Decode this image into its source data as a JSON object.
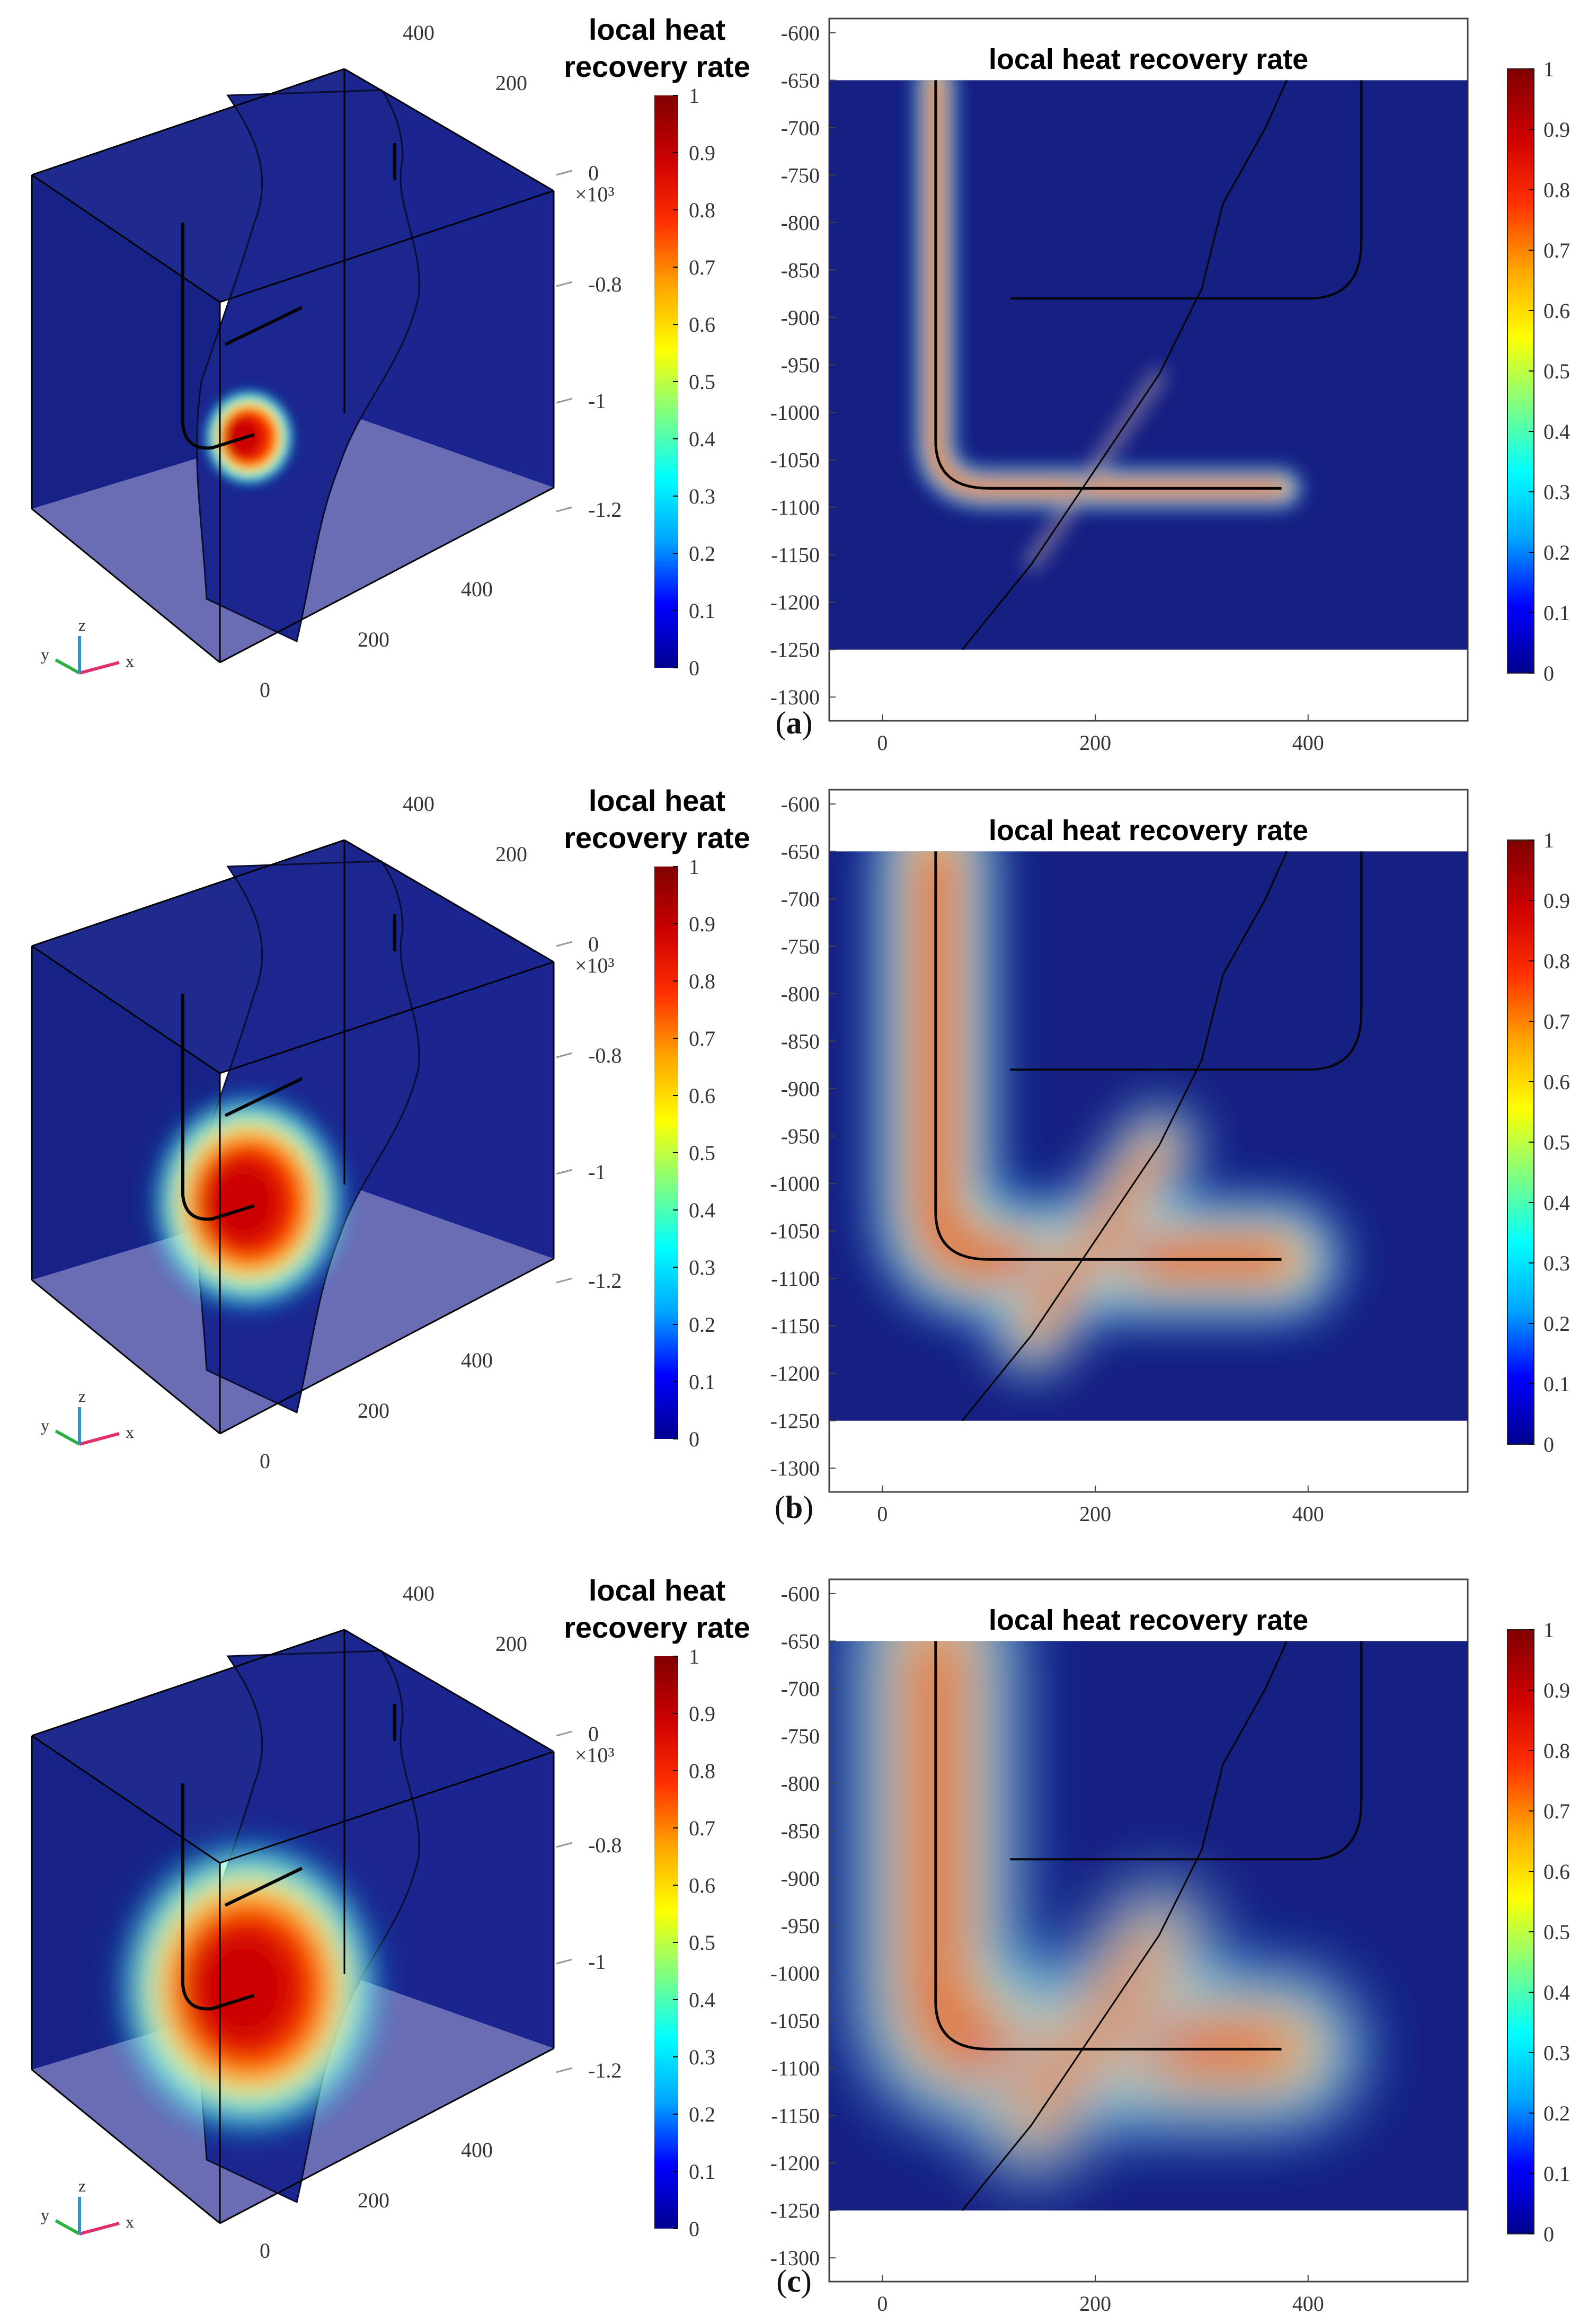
{
  "colormap": {
    "stops": [
      "#00008f",
      "#0000ff",
      "#00a6ff",
      "#00ffff",
      "#80ff80",
      "#ffff00",
      "#ffa600",
      "#ff3000",
      "#cc0000",
      "#800000"
    ],
    "outside": "#161f82",
    "floor": "#6a6cb4"
  },
  "figure": {
    "caption_parts": [
      "(",
      ")"
    ]
  },
  "panels": [
    {
      "label": "a",
      "plot3d": {
        "cbar_title_line1": "local heat",
        "cbar_title_line2": "recovery rate",
        "cbar_ticks": [
          "1",
          "0.9",
          "0.8",
          "0.7",
          "0.6",
          "0.5",
          "0.4",
          "0.3",
          "0.2",
          "0.1",
          "0"
        ],
        "z_ticks": [
          "0",
          "-0.8",
          "-1",
          "-1.2"
        ],
        "z_exp": "×10³",
        "x_ticks": [
          "0",
          "200",
          "400"
        ],
        "y_ticks": [
          "200",
          "400"
        ],
        "triad": [
          "x",
          "y",
          "z"
        ],
        "plume_extent": 0.12
      },
      "plot2d": {
        "title": "local heat recovery rate",
        "y_ticks": [
          "-600",
          "-650",
          "-700",
          "-750",
          "-800",
          "-850",
          "-900",
          "-950",
          "-1000",
          "-1050",
          "-1100",
          "-1150",
          "-1200",
          "-1250",
          "-1300"
        ],
        "x_ticks": [
          "0",
          "200",
          "400"
        ],
        "cbar_ticks": [
          "1",
          "0.9",
          "0.8",
          "0.7",
          "0.6",
          "0.5",
          "0.4",
          "0.3",
          "0.2",
          "0.1",
          "0"
        ],
        "xlim": [
          -50,
          550
        ],
        "ylim": [
          -1325,
          -585
        ],
        "domain_x": [
          -50,
          550
        ],
        "domain_y": [
          -1250,
          -650
        ],
        "plume_width": 14
      }
    },
    {
      "label": "b",
      "plot3d": {
        "cbar_title_line1": "local heat",
        "cbar_title_line2": "recovery rate",
        "cbar_ticks": [
          "1",
          "0.9",
          "0.8",
          "0.7",
          "0.6",
          "0.5",
          "0.4",
          "0.3",
          "0.2",
          "0.1",
          "0"
        ],
        "z_ticks": [
          "0",
          "-0.8",
          "-1",
          "-1.2"
        ],
        "z_exp": "×10³",
        "x_ticks": [
          "0",
          "200",
          "400"
        ],
        "y_ticks": [
          "200",
          "400"
        ],
        "triad": [
          "x",
          "y",
          "z"
        ],
        "plume_extent": 0.42
      },
      "plot2d": {
        "title": "local heat recovery rate",
        "y_ticks": [
          "-600",
          "-650",
          "-700",
          "-750",
          "-800",
          "-850",
          "-900",
          "-950",
          "-1000",
          "-1050",
          "-1100",
          "-1150",
          "-1200",
          "-1250",
          "-1300"
        ],
        "x_ticks": [
          "0",
          "200",
          "400"
        ],
        "cbar_ticks": [
          "1",
          "0.9",
          "0.8",
          "0.7",
          "0.6",
          "0.5",
          "0.4",
          "0.3",
          "0.2",
          "0.1",
          "0"
        ],
        "xlim": [
          -50,
          550
        ],
        "ylim": [
          -1325,
          -585
        ],
        "domain_x": [
          -50,
          550
        ],
        "domain_y": [
          -1250,
          -650
        ],
        "plume_width": 45
      }
    },
    {
      "label": "c",
      "plot3d": {
        "cbar_title_line1": "local heat",
        "cbar_title_line2": "recovery rate",
        "cbar_ticks": [
          "1",
          "0.9",
          "0.8",
          "0.7",
          "0.6",
          "0.5",
          "0.4",
          "0.3",
          "0.2",
          "0.1",
          "0"
        ],
        "z_ticks": [
          "0",
          "-0.8",
          "-1",
          "-1.2"
        ],
        "z_exp": "×10³",
        "x_ticks": [
          "0",
          "200",
          "400"
        ],
        "y_ticks": [
          "200",
          "400"
        ],
        "triad": [
          "x",
          "y",
          "z"
        ],
        "plume_extent": 0.62
      },
      "plot2d": {
        "title": "local heat recovery rate",
        "y_ticks": [
          "-600",
          "-650",
          "-700",
          "-750",
          "-800",
          "-850",
          "-900",
          "-950",
          "-1000",
          "-1050",
          "-1100",
          "-1150",
          "-1200",
          "-1250",
          "-1300"
        ],
        "x_ticks": [
          "0",
          "200",
          "400"
        ],
        "cbar_ticks": [
          "1",
          "0.9",
          "0.8",
          "0.7",
          "0.6",
          "0.5",
          "0.4",
          "0.3",
          "0.2",
          "0.1",
          "0"
        ],
        "xlim": [
          -50,
          550
        ],
        "ylim": [
          -1325,
          -585
        ],
        "domain_x": [
          -50,
          550
        ],
        "domain_y": [
          -1250,
          -650
        ],
        "plume_width": 62
      }
    }
  ],
  "chart_data": [
    {
      "type": "heatmap",
      "title": "local heat recovery rate",
      "panel": "a",
      "x_ticks": [
        0,
        200,
        400
      ],
      "y_ticks": [
        -600,
        -650,
        -700,
        -750,
        -800,
        -850,
        -900,
        -950,
        -1000,
        -1050,
        -1100,
        -1150,
        -1200,
        -1250,
        -1300
      ],
      "xlim": [
        -50,
        550
      ],
      "ylim": [
        -1325,
        -585
      ],
      "colorbar_range": [
        0,
        1
      ],
      "wells": {
        "injection": [
          [
            50,
            -650
          ],
          [
            50,
            -1030
          ],
          [
            100,
            -1080
          ],
          [
            375,
            -1080
          ]
        ],
        "production": [
          [
            450,
            -650
          ],
          [
            450,
            -820
          ],
          [
            400,
            -880
          ],
          [
            120,
            -880
          ]
        ],
        "fracture": [
          [
            75,
            -1250
          ],
          [
            140,
            -1160
          ],
          [
            200,
            -1060
          ],
          [
            260,
            -960
          ],
          [
            300,
            -870
          ],
          [
            320,
            -780
          ],
          [
            360,
            -700
          ],
          [
            380,
            -650
          ]
        ]
      }
    },
    {
      "type": "heatmap",
      "title": "local heat recovery rate",
      "panel": "b",
      "x_ticks": [
        0,
        200,
        400
      ],
      "y_ticks": [
        -600,
        -650,
        -700,
        -750,
        -800,
        -850,
        -900,
        -950,
        -1000,
        -1050,
        -1100,
        -1150,
        -1200,
        -1250,
        -1300
      ],
      "xlim": [
        -50,
        550
      ],
      "ylim": [
        -1325,
        -585
      ],
      "colorbar_range": [
        0,
        1
      ],
      "wells": {
        "injection": [
          [
            50,
            -650
          ],
          [
            50,
            -1030
          ],
          [
            100,
            -1080
          ],
          [
            375,
            -1080
          ]
        ],
        "production": [
          [
            450,
            -650
          ],
          [
            450,
            -820
          ],
          [
            400,
            -880
          ],
          [
            120,
            -880
          ]
        ],
        "fracture": [
          [
            75,
            -1250
          ],
          [
            140,
            -1160
          ],
          [
            200,
            -1060
          ],
          [
            260,
            -960
          ],
          [
            300,
            -870
          ],
          [
            320,
            -780
          ],
          [
            360,
            -700
          ],
          [
            380,
            -650
          ]
        ]
      }
    },
    {
      "type": "heatmap",
      "title": "local heat recovery rate",
      "panel": "c",
      "x_ticks": [
        0,
        200,
        400
      ],
      "y_ticks": [
        -600,
        -650,
        -700,
        -750,
        -800,
        -850,
        -900,
        -950,
        -1000,
        -1050,
        -1100,
        -1150,
        -1200,
        -1250,
        -1300
      ],
      "xlim": [
        -50,
        550
      ],
      "ylim": [
        -1325,
        -585
      ],
      "colorbar_range": [
        0,
        1
      ],
      "wells": {
        "injection": [
          [
            50,
            -650
          ],
          [
            50,
            -1030
          ],
          [
            100,
            -1080
          ],
          [
            375,
            -1080
          ]
        ],
        "production": [
          [
            450,
            -650
          ],
          [
            450,
            -820
          ],
          [
            400,
            -880
          ],
          [
            120,
            -880
          ]
        ],
        "fracture": [
          [
            75,
            -1250
          ],
          [
            140,
            -1160
          ],
          [
            200,
            -1060
          ],
          [
            260,
            -960
          ],
          [
            300,
            -870
          ],
          [
            320,
            -780
          ],
          [
            360,
            -700
          ],
          [
            380,
            -650
          ]
        ]
      }
    }
  ]
}
